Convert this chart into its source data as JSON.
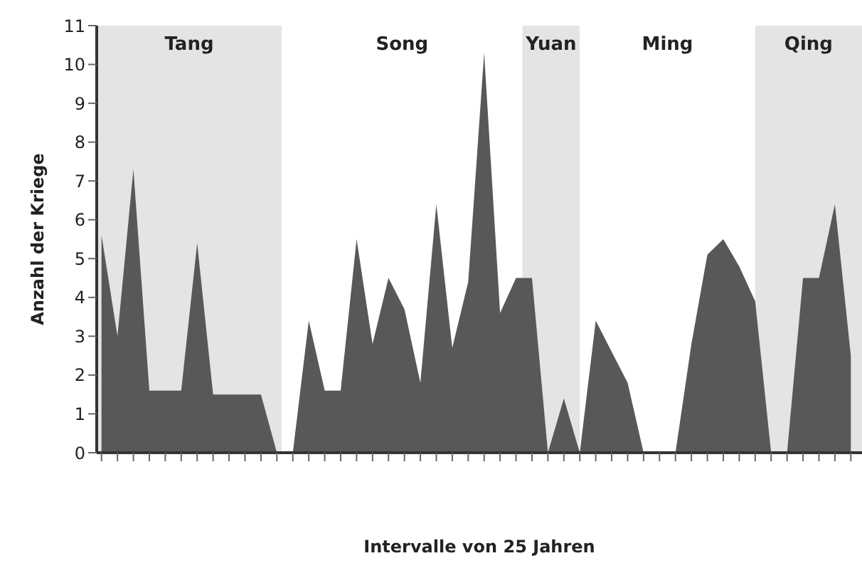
{
  "chart_data": {
    "type": "area",
    "xlabel": "Intervalle von 25 Jahren",
    "ylabel": "Anzahl der Kriege",
    "categories": [
      null,
      null,
      null,
      null,
      null,
      null,
      null,
      null,
      null,
      null,
      null,
      null,
      null,
      null,
      null,
      null,
      null,
      null,
      null,
      null,
      null,
      null,
      null,
      null,
      null,
      null,
      null,
      null,
      null,
      null,
      null,
      null,
      null,
      null,
      null,
      null,
      null,
      null,
      null,
      null,
      null,
      null,
      null,
      null,
      null,
      null,
      null,
      null
    ],
    "series": [
      {
        "color": "#585858",
        "values": [
          5.6,
          3.0,
          7.3,
          1.6,
          1.6,
          1.6,
          5.4,
          1.5,
          1.5,
          1.5,
          1.5,
          0,
          0,
          3.4,
          1.6,
          1.6,
          5.5,
          2.8,
          4.5,
          3.7,
          1.8,
          6.4,
          2.7,
          4.4,
          10.3,
          3.6,
          4.5,
          4.5,
          0,
          1.4,
          0,
          3.4,
          2.6,
          1.8,
          0,
          0,
          0,
          2.8,
          5.1,
          5.5,
          4.8,
          3.9,
          0,
          0,
          4.5,
          4.5,
          6.4,
          2.5
        ]
      }
    ],
    "ylim": [
      0,
      11
    ],
    "yticks": [
      0,
      1,
      2,
      3,
      4,
      5,
      6,
      7,
      8,
      9,
      10,
      11
    ],
    "grid": false,
    "annotations": [
      "Tang",
      "Song",
      "Yuan",
      "Ming",
      "Qing"
    ]
  }
}
